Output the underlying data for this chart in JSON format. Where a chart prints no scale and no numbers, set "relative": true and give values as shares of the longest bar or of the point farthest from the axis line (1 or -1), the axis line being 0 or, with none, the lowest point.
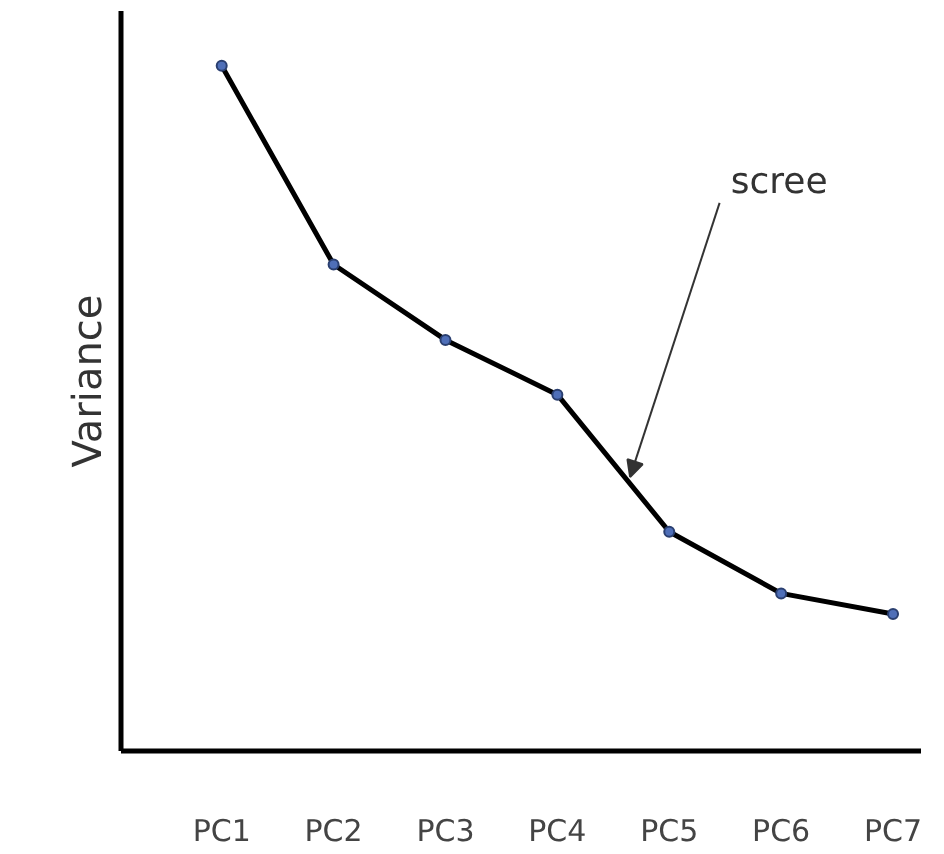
{
  "chart_data": {
    "type": "line",
    "relative": true,
    "ylabel": "Variance",
    "categories": [
      "PC1",
      "PC2",
      "PC3",
      "PC4",
      "PC5",
      "PC6",
      "PC7"
    ],
    "series": [
      {
        "color": "#000000",
        "values": [
          1,
          0.71,
          0.6,
          0.52,
          0.32,
          0.23,
          0.2
        ]
      }
    ],
    "marker": "circle",
    "grid": false,
    "annotations": [
      "scree"
    ]
  }
}
